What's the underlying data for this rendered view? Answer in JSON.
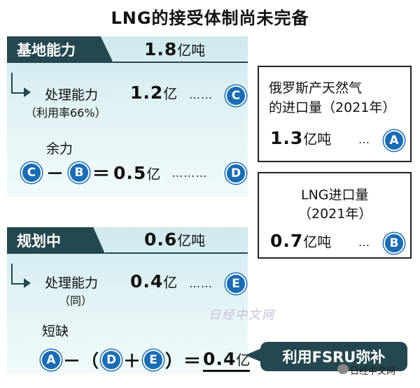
{
  "title": "LNG的接受体制尚未完备",
  "existing": {
    "tab": "基地能力",
    "capacity_value": "1.8",
    "capacity_unit": "亿吨",
    "processing_label": "处理能力",
    "utilization_note": "（利用率66%）",
    "processing_value": "1.2",
    "processing_unit": "亿",
    "processing_dots": "……",
    "processing_marker": "C",
    "spare_label": "余力",
    "spare_c": "C",
    "spare_minus": "－",
    "spare_b": "B",
    "spare_equals": "＝",
    "spare_value": "0.5",
    "spare_unit": "亿",
    "spare_dots": "………",
    "spare_marker": "D"
  },
  "planned": {
    "tab": "规划中",
    "capacity_value": "0.6",
    "capacity_unit": "亿吨",
    "processing_label": "处理能力",
    "same_note": "（同）",
    "processing_value": "0.4",
    "processing_unit": "亿",
    "processing_dots": "……",
    "processing_marker": "E",
    "shortage_label": "短缺",
    "eq_a": "A",
    "eq_minus": "－（",
    "eq_d": "D",
    "eq_plus": "＋",
    "eq_e": "E",
    "eq_close": "）＝",
    "shortage_value": "0.4",
    "shortage_unit": "亿",
    "fsru": "利用FSRU弥补"
  },
  "russia_box": {
    "line1": "俄罗斯产天然气",
    "line2": "的进口量（2021年）",
    "value": "1.3",
    "unit": "亿吨",
    "dots": "…",
    "marker": "A"
  },
  "lng_box": {
    "line1": "LNG进口量",
    "line2": "（2021年）",
    "value": "0.7",
    "unit": "亿吨",
    "dots": "…",
    "marker": "B"
  },
  "watermark": "日经中文网",
  "credit": "日经中文网",
  "colors": {
    "dark_teal": "#25474f",
    "marker_blue": "#1a6cb3",
    "panel_light": "#e4f4f6"
  }
}
